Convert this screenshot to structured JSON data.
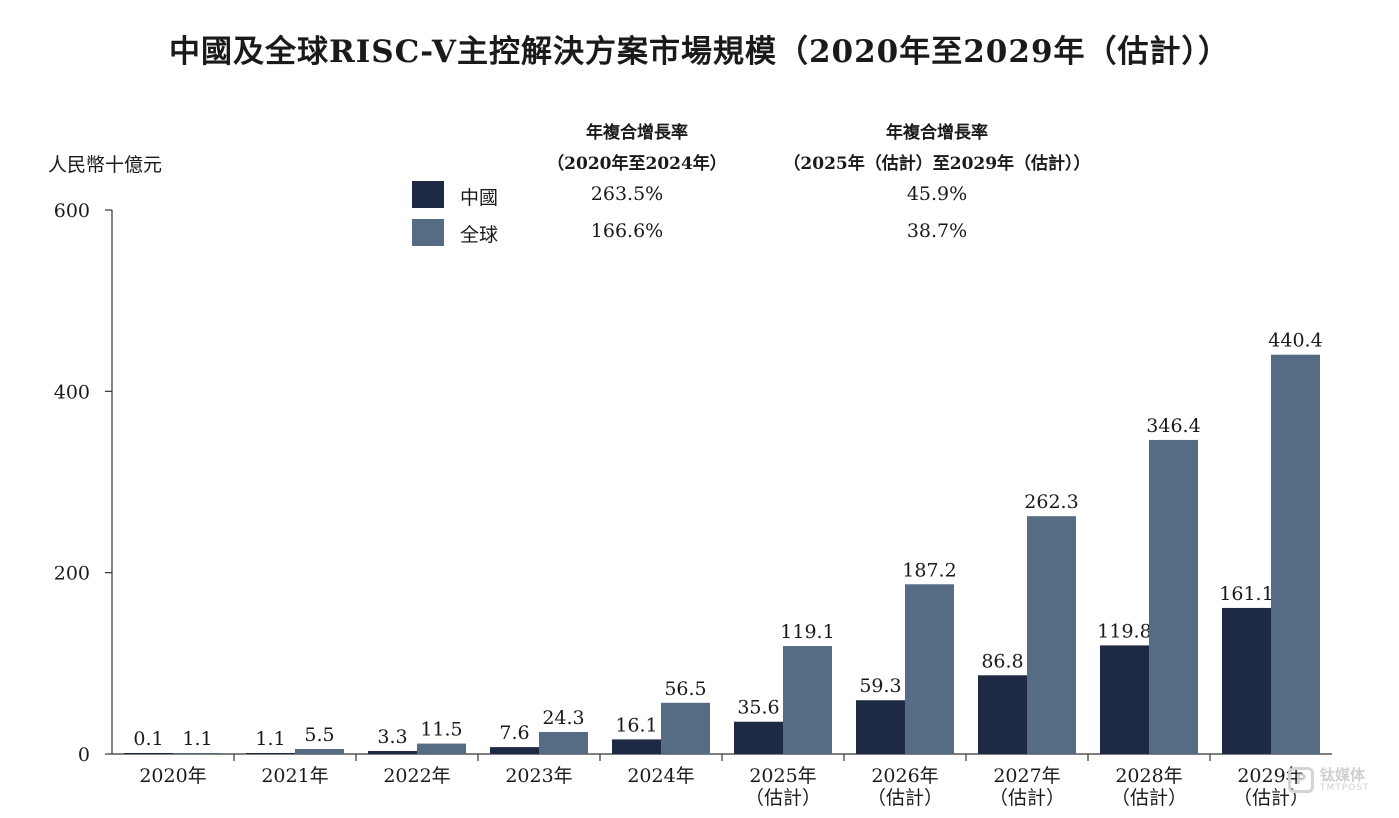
{
  "chart_data": {
    "type": "bar",
    "title": "中國及全球RISC-V主控解決方案市場規模（2020年至2029年（估計））",
    "ylabel": "人民幣十億元",
    "xlabel": "",
    "ylim": [
      0,
      600
    ],
    "yticks": [
      0,
      200,
      400,
      600
    ],
    "categories": [
      [
        "2020年"
      ],
      [
        "2021年"
      ],
      [
        "2022年"
      ],
      [
        "2023年"
      ],
      [
        "2024年"
      ],
      [
        "2025年",
        "（估計）"
      ],
      [
        "2026年",
        "（估計）"
      ],
      [
        "2027年",
        "（估計）"
      ],
      [
        "2028年",
        "（估計）"
      ],
      [
        "2029年",
        "（估計）"
      ]
    ],
    "series": [
      {
        "name": "中國",
        "color": "#1e2a44",
        "values": [
          0.1,
          1.1,
          3.3,
          7.6,
          16.1,
          35.6,
          59.3,
          86.8,
          119.8,
          161.1
        ]
      },
      {
        "name": "全球",
        "color": "#566c85",
        "values": [
          1.1,
          5.5,
          11.5,
          24.3,
          56.5,
          119.1,
          187.2,
          262.3,
          346.4,
          440.4
        ]
      }
    ],
    "legend": {
      "position": "top-center",
      "cagr_headers": [
        {
          "line1": "年複合增長率",
          "line2": "（2020年至2024年）"
        },
        {
          "line1": "年複合增長率",
          "line2": "（2025年（估計）至2029年（估計））"
        }
      ],
      "rows": [
        {
          "name": "中國",
          "cagr1": "263.5%",
          "cagr2": "45.9%"
        },
        {
          "name": "全球",
          "cagr1": "166.6%",
          "cagr2": "38.7%"
        }
      ]
    }
  },
  "watermark": {
    "icon": "P",
    "name": "钛媒体",
    "sub": "TMTPOST"
  }
}
